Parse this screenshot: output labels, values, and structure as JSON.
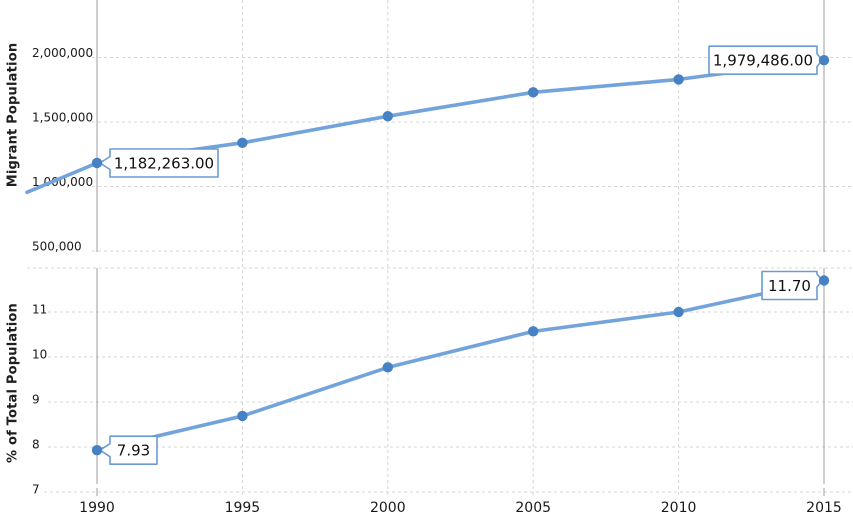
{
  "figure": {
    "background": "#ffffff",
    "x_tick_labels": [
      "1990",
      "1995",
      "2000",
      "2005",
      "2010",
      "2015"
    ]
  },
  "colors": {
    "line": "#73a3db",
    "marker": "#4681c4",
    "solid_gridline": "#9e9e9e",
    "dashed_gridline": "#d6d6d6",
    "callout_border": "#6b9bd2",
    "callout_fill": "#ffffff",
    "tick_text": "#1a1a1a",
    "callout_text": "#111111"
  },
  "chart_data": [
    {
      "type": "line",
      "panel": "top",
      "title": "",
      "xlabel": "",
      "ylabel": "Migrant Population",
      "x": [
        1990,
        1995,
        2000,
        2005,
        2010,
        2015
      ],
      "series": [
        {
          "name": "Migrant Population",
          "values": [
            1182263,
            1339000,
            1545000,
            1730000,
            1830000,
            1979486
          ]
        }
      ],
      "y_ticks": [
        500000,
        1000000,
        1500000,
        2000000
      ],
      "y_tick_labels": [
        "500,000",
        "1,000,000",
        "1,500,000",
        "2,000,000"
      ],
      "grid": true,
      "legend_position": "none",
      "partial_line_from_left_edge_value": 955000,
      "annotations": [
        {
          "x": 1990,
          "value": 1182263,
          "label": "1,182,263.00",
          "side": "right",
          "dy": 0
        },
        {
          "x": 2015,
          "value": 1979486,
          "label": "1,979,486.00",
          "side": "left",
          "dy": 0
        }
      ]
    },
    {
      "type": "line",
      "panel": "bottom",
      "title": "",
      "xlabel": "",
      "ylabel": "% of Total Population",
      "x": [
        1990,
        1995,
        2000,
        2005,
        2010,
        2015
      ],
      "series": [
        {
          "name": "% of Total Population",
          "values": [
            7.93,
            8.69,
            9.77,
            10.57,
            11.0,
            11.7
          ]
        }
      ],
      "y_ticks": [
        7,
        8,
        9,
        10,
        11
      ],
      "y_tick_labels": [
        "7",
        "8",
        "9",
        "10",
        "11"
      ],
      "ylim": [
        7,
        12
      ],
      "grid": true,
      "legend_position": "none",
      "annotations": [
        {
          "x": 1990,
          "value": 7.93,
          "label": "7.93",
          "side": "right",
          "dy": 0
        },
        {
          "x": 2015,
          "value": 11.7,
          "label": "11.70",
          "side": "left",
          "dy": 5
        }
      ]
    }
  ]
}
